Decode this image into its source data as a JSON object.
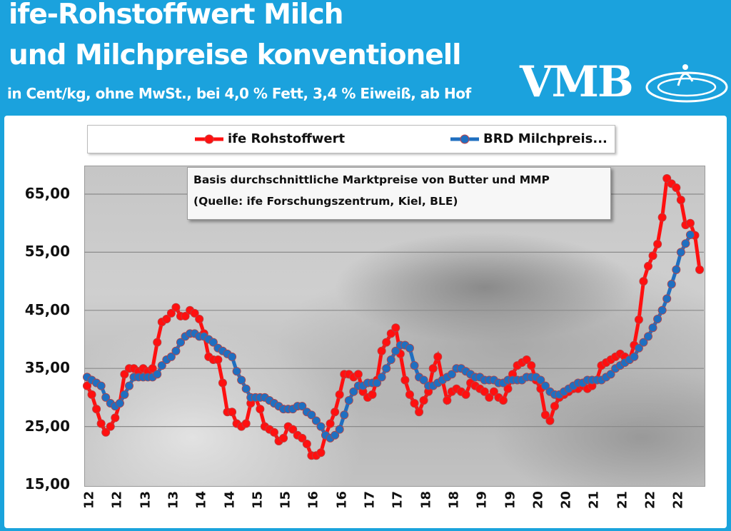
{
  "header": {
    "title_line1": "ife-Rohstoffwert Milch",
    "title_line2": "und Milchpreise konventionell",
    "subtitle": "in Cent/kg, ohne MwSt., bei 4,0 % Fett, 3,4 % Eiweiß, ab Hof",
    "logo_text": "VMB"
  },
  "annotation": {
    "line1": "Basis durchschnittliche Marktpreise von Butter und MMP",
    "line2": "(Quelle: ife Forschungszentrum, Kiel, BLE)"
  },
  "colors": {
    "header_bg": "#1ba2dd",
    "red_series": "#ff1010",
    "blue_series": "#1f6fc0"
  },
  "chart_data": {
    "type": "line",
    "x_start": "2012-01",
    "x_frequency": "monthly",
    "ylim": [
      15,
      70
    ],
    "y_ticks": [
      "15,00",
      "25,00",
      "35,00",
      "45,00",
      "55,00",
      "65,00"
    ],
    "y_tick_values": [
      15,
      25,
      35,
      45,
      55,
      65
    ],
    "x_tick_labels": [
      "12",
      "12",
      "13",
      "13",
      "14",
      "14",
      "15",
      "15",
      "16",
      "16",
      "17",
      "17",
      "18",
      "18",
      "19",
      "19",
      "20",
      "20",
      "21",
      "21",
      "22",
      "22"
    ],
    "grid": "horizontal",
    "legend_placement": "top",
    "series": [
      {
        "name": "ife Rohstoffwert",
        "color": "#ff1010",
        "values": [
          32,
          30.5,
          28,
          25.5,
          24,
          25,
          26.5,
          29,
          34,
          35,
          35,
          34.5,
          35,
          34.5,
          35,
          39.5,
          43,
          43.5,
          44.5,
          45.5,
          44,
          44,
          45,
          44.5,
          43.5,
          41,
          37,
          36.5,
          36.5,
          32.5,
          27.5,
          27.5,
          25.5,
          25,
          25.5,
          29,
          30,
          28,
          25,
          24.5,
          24,
          22.5,
          23,
          25,
          24.5,
          23.5,
          23,
          22,
          20,
          20,
          20.5,
          23.5,
          25.5,
          27.5,
          30.5,
          34,
          34,
          33.5,
          34,
          31,
          30,
          30.5,
          33,
          38,
          39.5,
          41,
          42,
          37.5,
          33,
          30.5,
          29,
          27.5,
          29.5,
          31,
          35,
          37,
          33,
          29.5,
          31,
          31.5,
          31,
          30.5,
          32.5,
          32,
          31.5,
          31,
          30,
          31,
          30,
          29.5,
          31.5,
          34,
          35.5,
          36,
          36.5,
          35.5,
          33,
          31.5,
          27,
          26,
          28.5,
          30,
          30.5,
          31,
          31.5,
          31.5,
          32,
          31.5,
          32,
          33,
          35.5,
          36,
          36.5,
          37,
          37.5,
          37,
          36.5,
          39,
          43.4,
          50,
          52.6,
          54.4,
          56.4,
          61,
          67.7,
          66.8,
          66.1,
          64,
          59.7,
          60,
          57.9,
          52
        ]
      },
      {
        "name": "BRD Milchpreis...",
        "color": "#1f6fc0",
        "values": [
          33.5,
          33,
          32.5,
          32,
          30,
          29,
          28.5,
          29,
          30.5,
          32,
          33.5,
          33.5,
          33.5,
          33.5,
          33.5,
          34,
          35.5,
          36.5,
          37,
          38,
          39.5,
          40.5,
          41,
          41,
          40.5,
          40.5,
          40,
          39.5,
          38.5,
          38,
          37.5,
          37,
          34.5,
          33,
          31.5,
          30,
          30,
          30,
          30,
          29.5,
          29,
          28.5,
          28,
          28,
          28,
          28.5,
          28.5,
          27.5,
          27,
          26,
          25,
          23.5,
          23,
          23.5,
          24.5,
          27,
          29.5,
          31,
          32,
          32,
          32.5,
          32.5,
          32.5,
          33.5,
          35,
          36.5,
          38,
          39,
          39,
          38.5,
          35.5,
          33.5,
          33,
          32,
          32,
          32.5,
          33,
          33.5,
          34,
          35,
          35,
          34.5,
          34,
          33.5,
          33.5,
          33,
          33,
          33,
          32.5,
          32.5,
          33,
          33,
          33,
          33,
          33.5,
          33.5,
          33.5,
          33,
          32,
          31,
          30.5,
          30.5,
          31,
          31.5,
          32,
          32.5,
          32.5,
          33,
          33,
          33,
          33,
          33.5,
          34,
          35,
          35.5,
          36,
          36.5,
          37,
          38.5,
          39.5,
          40.5,
          42,
          43.5,
          45,
          47,
          49.5,
          52,
          55,
          56.5,
          58
        ]
      }
    ]
  }
}
